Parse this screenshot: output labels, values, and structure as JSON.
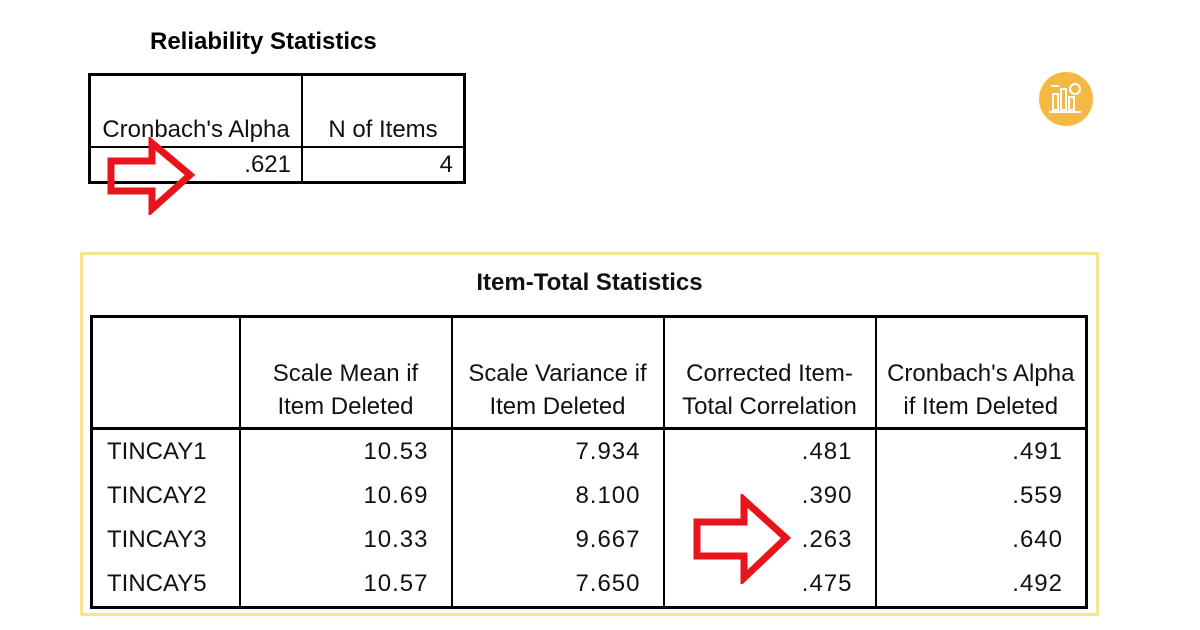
{
  "reliability": {
    "title": "Reliability Statistics",
    "headers": [
      "Cronbach's Alpha",
      "N of Items"
    ],
    "values": [
      ".621",
      "4"
    ]
  },
  "item_total": {
    "title": "Item-Total Statistics",
    "headers": [
      "",
      "Scale Mean if Item Deleted",
      "Scale Variance if Item Deleted",
      "Corrected Item-Total Correlation",
      "Cronbach's Alpha if Item Deleted"
    ],
    "rows": [
      [
        "TINCAY1",
        "10.53",
        "7.934",
        ".481",
        ".491"
      ],
      [
        "TINCAY2",
        "10.69",
        "8.100",
        ".390",
        ".559"
      ],
      [
        "TINCAY3",
        "10.33",
        "9.667",
        ".263",
        ".640"
      ],
      [
        "TINCAY5",
        "10.57",
        "7.650",
        ".475",
        ".492"
      ]
    ]
  },
  "colors": {
    "arrow": "#e8131b",
    "frame": "#f7e48f",
    "logo": "#f4b942"
  },
  "icons": {
    "arrow": "right-arrow-outline-icon",
    "logo": "analytics-badge-icon"
  }
}
